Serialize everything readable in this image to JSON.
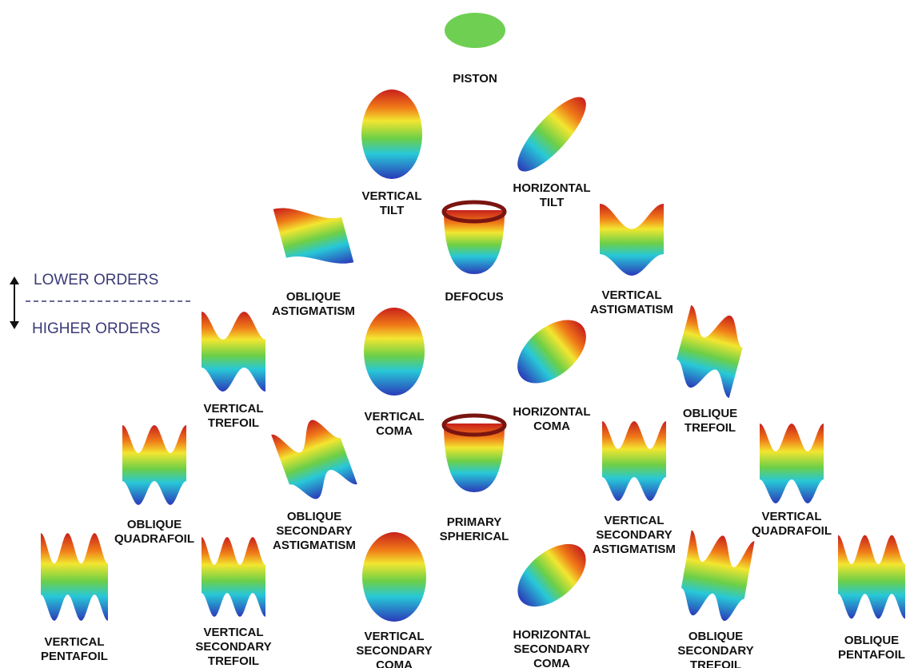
{
  "legend": {
    "upper": "LOWER ORDERS",
    "lower": "HIGHER ORDERS"
  },
  "nodes": [
    {
      "label": [
        "PISTON"
      ]
    },
    {
      "label": [
        "VERTICAL",
        "TILT"
      ]
    },
    {
      "label": [
        "HORIZONTAL",
        "TILT"
      ]
    },
    {
      "label": [
        "OBLIQUE",
        "ASTIGMATISM"
      ]
    },
    {
      "label": [
        "DEFOCUS"
      ]
    },
    {
      "label": [
        "VERTICAL",
        "ASTIGMATISM"
      ]
    },
    {
      "label": [
        "VERTICAL",
        "TREFOIL"
      ]
    },
    {
      "label": [
        "VERTICAL",
        "COMA"
      ]
    },
    {
      "label": [
        "HORIZONTAL",
        "COMA"
      ]
    },
    {
      "label": [
        "OBLIQUE",
        "TREFOIL"
      ]
    },
    {
      "label": [
        "OBLIQUE",
        "QUADRAFOIL"
      ]
    },
    {
      "label": [
        "OBLIQUE",
        "SECONDARY",
        "ASTIGMATISM"
      ]
    },
    {
      "label": [
        "PRIMARY",
        "SPHERICAL"
      ]
    },
    {
      "label": [
        "VERTICAL",
        "SECONDARY",
        "ASTIGMATISM"
      ]
    },
    {
      "label": [
        "VERTICAL",
        "QUADRAFOIL"
      ]
    },
    {
      "label": [
        "VERTICAL",
        "PENTAFOIL"
      ]
    },
    {
      "label": [
        "VERTICAL",
        "SECONDARY",
        "TREFOIL"
      ]
    },
    {
      "label": [
        "VERTICAL",
        "SECONDARY",
        "COMA"
      ]
    },
    {
      "label": [
        "HORIZONTAL",
        "SECONDARY",
        "COMA"
      ]
    },
    {
      "label": [
        "OBLIQUE",
        "SECONDARY",
        "TREFOIL"
      ]
    },
    {
      "label": [
        "OBLIQUE",
        "PENTAFOIL"
      ]
    }
  ]
}
